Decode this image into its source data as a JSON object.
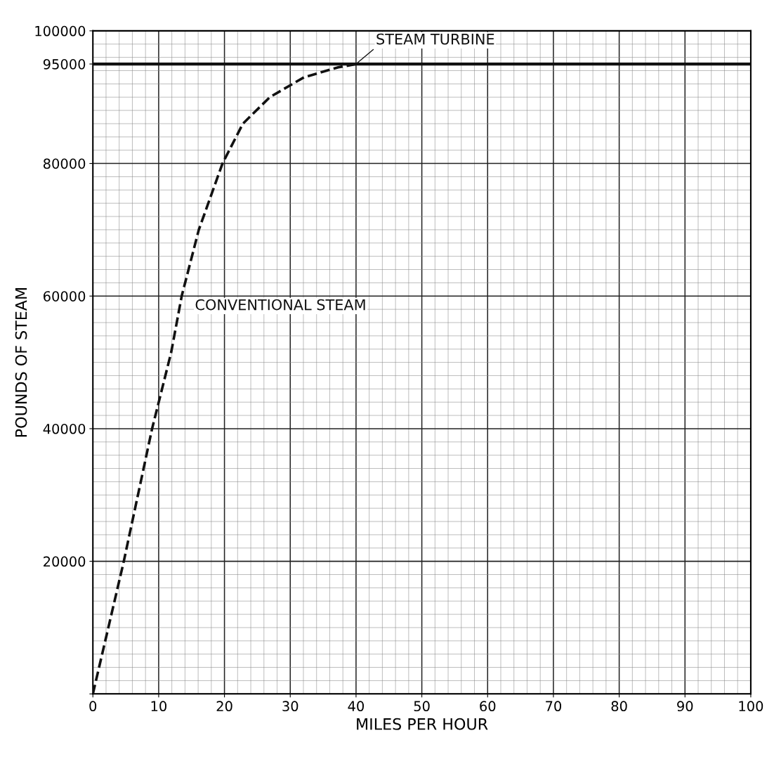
{
  "chart_data": {
    "type": "line",
    "xlabel": "MILES PER HOUR",
    "ylabel": "POUNDS OF STEAM",
    "xlim": [
      0,
      100
    ],
    "ylim": [
      0,
      100000
    ],
    "xticks": [
      0,
      10,
      20,
      30,
      40,
      50,
      60,
      70,
      80,
      90,
      100
    ],
    "yticks": [
      {
        "value": 0,
        "label": null
      },
      20000,
      40000,
      60000,
      80000,
      95000,
      100000
    ],
    "grid": true,
    "legend": false,
    "marker": "none",
    "series": [
      {
        "name": "STEAM TURBINE",
        "color": "#111111",
        "line_style": "solid",
        "x": [
          0,
          100
        ],
        "values": [
          95000,
          95000
        ]
      },
      {
        "name": "CONVENTIONAL STEAM",
        "color": "#111111",
        "line_style": "dashed",
        "x": [
          0,
          4.7,
          9.0,
          11.9,
          13.5,
          16.1,
          19.7,
          22.8,
          26.9,
          32.1,
          37.3,
          40.1
        ],
        "values": [
          0,
          20000,
          40000,
          51500,
          60000,
          70000,
          80000,
          86000,
          90000,
          93000,
          94500,
          95000
        ]
      }
    ]
  }
}
